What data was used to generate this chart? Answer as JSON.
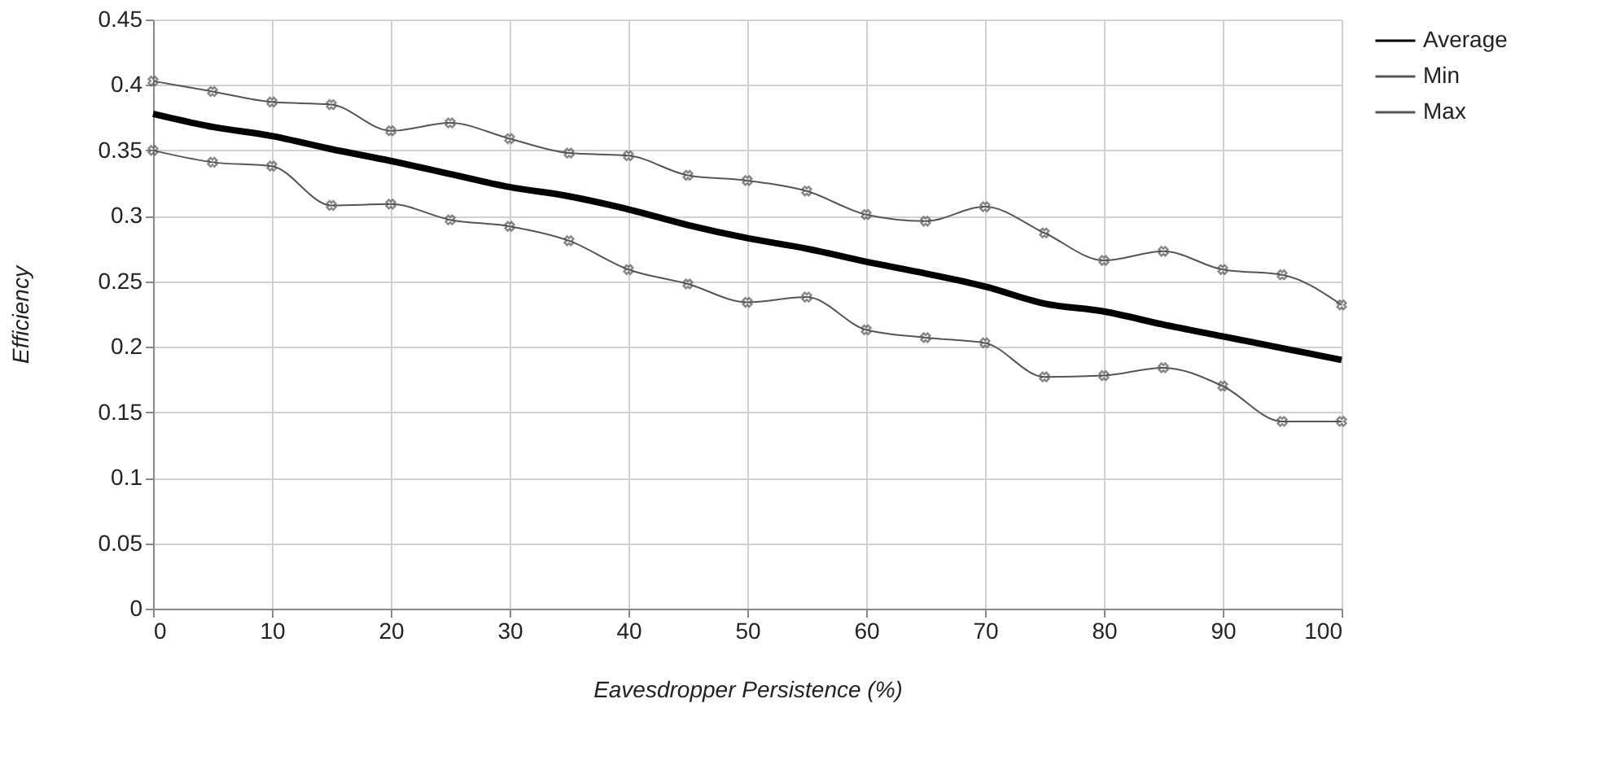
{
  "chart_data": {
    "type": "line",
    "xlabel": "Eavesdropper Persistence (%)",
    "ylabel": "Efficiency",
    "x": [
      0,
      5,
      10,
      15,
      20,
      25,
      30,
      35,
      40,
      45,
      50,
      55,
      60,
      65,
      70,
      75,
      80,
      85,
      90,
      95,
      100
    ],
    "series": [
      {
        "name": "Average",
        "color": "#000000",
        "marker": "none",
        "values": [
          0.378,
          0.368,
          0.361,
          0.351,
          0.342,
          0.332,
          0.322,
          0.315,
          0.305,
          0.293,
          0.283,
          0.275,
          0.265,
          0.256,
          0.246,
          0.233,
          0.227,
          0.217,
          0.208,
          0.199,
          0.19
        ]
      },
      {
        "name": "Min",
        "color": "#555555",
        "marker": "cross",
        "values": [
          0.35,
          0.341,
          0.338,
          0.308,
          0.309,
          0.297,
          0.292,
          0.281,
          0.259,
          0.248,
          0.234,
          0.238,
          0.213,
          0.207,
          0.203,
          0.177,
          0.178,
          0.184,
          0.17,
          0.143,
          0.143
        ]
      },
      {
        "name": "Max",
        "color": "#555555",
        "marker": "cross",
        "values": [
          0.403,
          0.395,
          0.387,
          0.385,
          0.365,
          0.371,
          0.359,
          0.348,
          0.346,
          0.331,
          0.327,
          0.319,
          0.301,
          0.296,
          0.307,
          0.287,
          0.266,
          0.273,
          0.259,
          0.255,
          0.232
        ]
      }
    ],
    "xlim": [
      0,
      100
    ],
    "xticks": [
      0,
      10,
      20,
      30,
      40,
      50,
      60,
      70,
      80,
      90,
      100
    ],
    "ylim": [
      0,
      0.45
    ],
    "yticks": [
      0,
      0.05,
      0.1,
      0.15,
      0.2,
      0.25,
      0.3,
      0.35,
      0.4,
      0.45
    ],
    "grid": true,
    "legend": "top right",
    "line_style": "solid"
  }
}
